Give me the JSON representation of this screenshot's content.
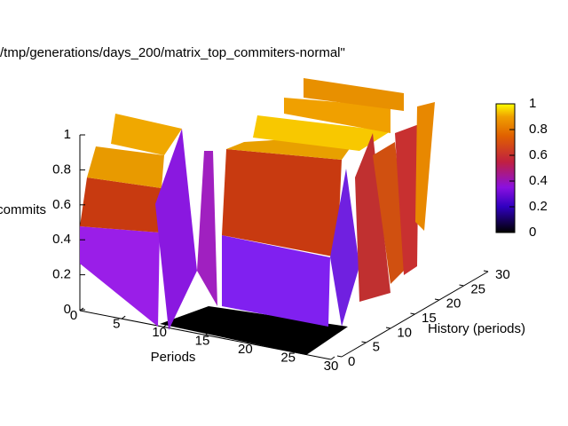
{
  "chart_data": {
    "type": "surface",
    "title": "/tmp/generations/days_200/matrix_top_commiters-normal\"",
    "xlabel": "Periods",
    "ylabel": "History (periods)",
    "zlabel": "commits",
    "xlim": [
      0,
      30
    ],
    "xticks": [
      0,
      5,
      10,
      15,
      20,
      25,
      30
    ],
    "ylim": [
      0,
      30
    ],
    "yticks": [
      0,
      5,
      10,
      15,
      20,
      25,
      30
    ],
    "zlim": [
      0,
      1
    ],
    "zticks": [
      0,
      0.2,
      0.4,
      0.6,
      0.8,
      1
    ],
    "cblim": [
      0,
      1
    ],
    "cbticks": [
      0,
      0.2,
      0.4,
      0.6,
      0.8,
      1
    ]
  }
}
